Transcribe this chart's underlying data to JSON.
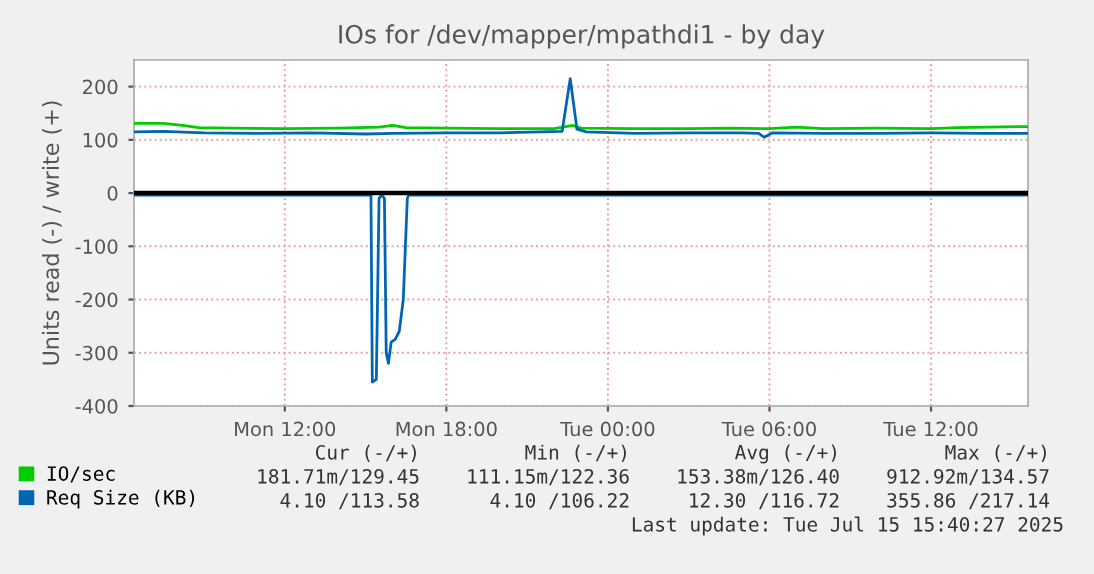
{
  "chart_data": {
    "type": "line",
    "title": "IOs for /dev/mapper/mpathdi1 - by day",
    "ylabel": "Units read (-) / write (+)",
    "xlim": [
      "2025-07-14T06:24",
      "2025-07-15T15:36"
    ],
    "xticks": [
      {
        "value": "2025-07-14T12:00",
        "label": "Mon 12:00"
      },
      {
        "value": "2025-07-14T18:00",
        "label": "Mon 18:00"
      },
      {
        "value": "2025-07-15T00:00",
        "label": "Tue 00:00"
      },
      {
        "value": "2025-07-15T06:00",
        "label": "Tue 06:00"
      },
      {
        "value": "2025-07-15T12:00",
        "label": "Tue 12:00"
      }
    ],
    "ylim": [
      -400,
      250
    ],
    "yticks": [
      -400,
      -300,
      -200,
      -100,
      0,
      100,
      200
    ],
    "grid": true,
    "legend": "bottom",
    "line_style": "solid",
    "marker": "none",
    "ref_lines": [
      {
        "axis": "y",
        "value": 0,
        "color": "#000000"
      }
    ],
    "series": [
      {
        "name": "IO/sec",
        "color": "#00cc00",
        "x": [
          "2025-07-14T06:24",
          "2025-07-14T07:30",
          "2025-07-14T08:12",
          "2025-07-14T08:48",
          "2025-07-14T10:00",
          "2025-07-14T12:00",
          "2025-07-14T14:00",
          "2025-07-14T15:30",
          "2025-07-14T16:00",
          "2025-07-14T16:30",
          "2025-07-14T18:00",
          "2025-07-14T20:00",
          "2025-07-14T22:00",
          "2025-07-14T22:42",
          "2025-07-14T23:00",
          "2025-07-15T01:00",
          "2025-07-15T03:00",
          "2025-07-15T04:30",
          "2025-07-15T06:00",
          "2025-07-15T07:00",
          "2025-07-15T08:00",
          "2025-07-15T10:00",
          "2025-07-15T12:00",
          "2025-07-15T13:00",
          "2025-07-15T15:36"
        ],
        "values": [
          131,
          131,
          127,
          123,
          122,
          121,
          122,
          124,
          127,
          123,
          122,
          121,
          121,
          127,
          122,
          121,
          121,
          122,
          121,
          124,
          121,
          122,
          121,
          123,
          125
        ]
      },
      {
        "name": "Req Size (KB)",
        "color": "#0066b3",
        "x": [
          "2025-07-14T06:24",
          "2025-07-14T07:30",
          "2025-07-14T09:00",
          "2025-07-14T11:00",
          "2025-07-14T13:00",
          "2025-07-14T15:00",
          "2025-07-14T16:00",
          "2025-07-14T18:00",
          "2025-07-14T20:00",
          "2025-07-14T22:18",
          "2025-07-14T22:36",
          "2025-07-14T22:51",
          "2025-07-14T23:12",
          "2025-07-15T01:00",
          "2025-07-15T03:00",
          "2025-07-15T05:00",
          "2025-07-15T05:36",
          "2025-07-15T05:48",
          "2025-07-15T06:06",
          "2025-07-15T08:00",
          "2025-07-15T10:00",
          "2025-07-15T12:00",
          "2025-07-15T14:00",
          "2025-07-15T15:36"
        ],
        "values": [
          115,
          116,
          113,
          112,
          113,
          111,
          112,
          113,
          113,
          116,
          215,
          120,
          115,
          112,
          113,
          113,
          112,
          105,
          113,
          112,
          112,
          113,
          112,
          112
        ]
      },
      {
        "color": "#0066b3",
        "x": [
          "2025-07-14T06:24",
          "2025-07-14T15:12",
          "2025-07-14T15:15",
          "2025-07-14T15:24",
          "2025-07-14T15:30",
          "2025-07-14T15:36",
          "2025-07-14T15:42",
          "2025-07-14T15:46",
          "2025-07-14T15:51",
          "2025-07-14T15:57",
          "2025-07-14T16:06",
          "2025-07-14T16:15",
          "2025-07-14T16:24",
          "2025-07-14T16:33",
          "2025-07-14T16:36",
          "2025-07-15T15:36"
        ],
        "values": [
          -4,
          -4,
          -355,
          -350,
          -10,
          -4,
          -10,
          -300,
          -320,
          -280,
          -275,
          -260,
          -200,
          -10,
          -4,
          -4
        ]
      }
    ],
    "annotations": [
      "Cur (-/+)",
      "Min (-/+)",
      "Avg (-/+)",
      "Max (-/+)",
      "181.71m/129.45",
      "111.15m/122.36",
      "153.38m/126.40",
      "912.92m/134.57",
      "4.10 /113.58",
      "4.10 /106.22",
      "12.30 /116.72",
      "355.86 /217.14",
      "Last update: Tue Jul 15 15:40:27 2025"
    ]
  }
}
